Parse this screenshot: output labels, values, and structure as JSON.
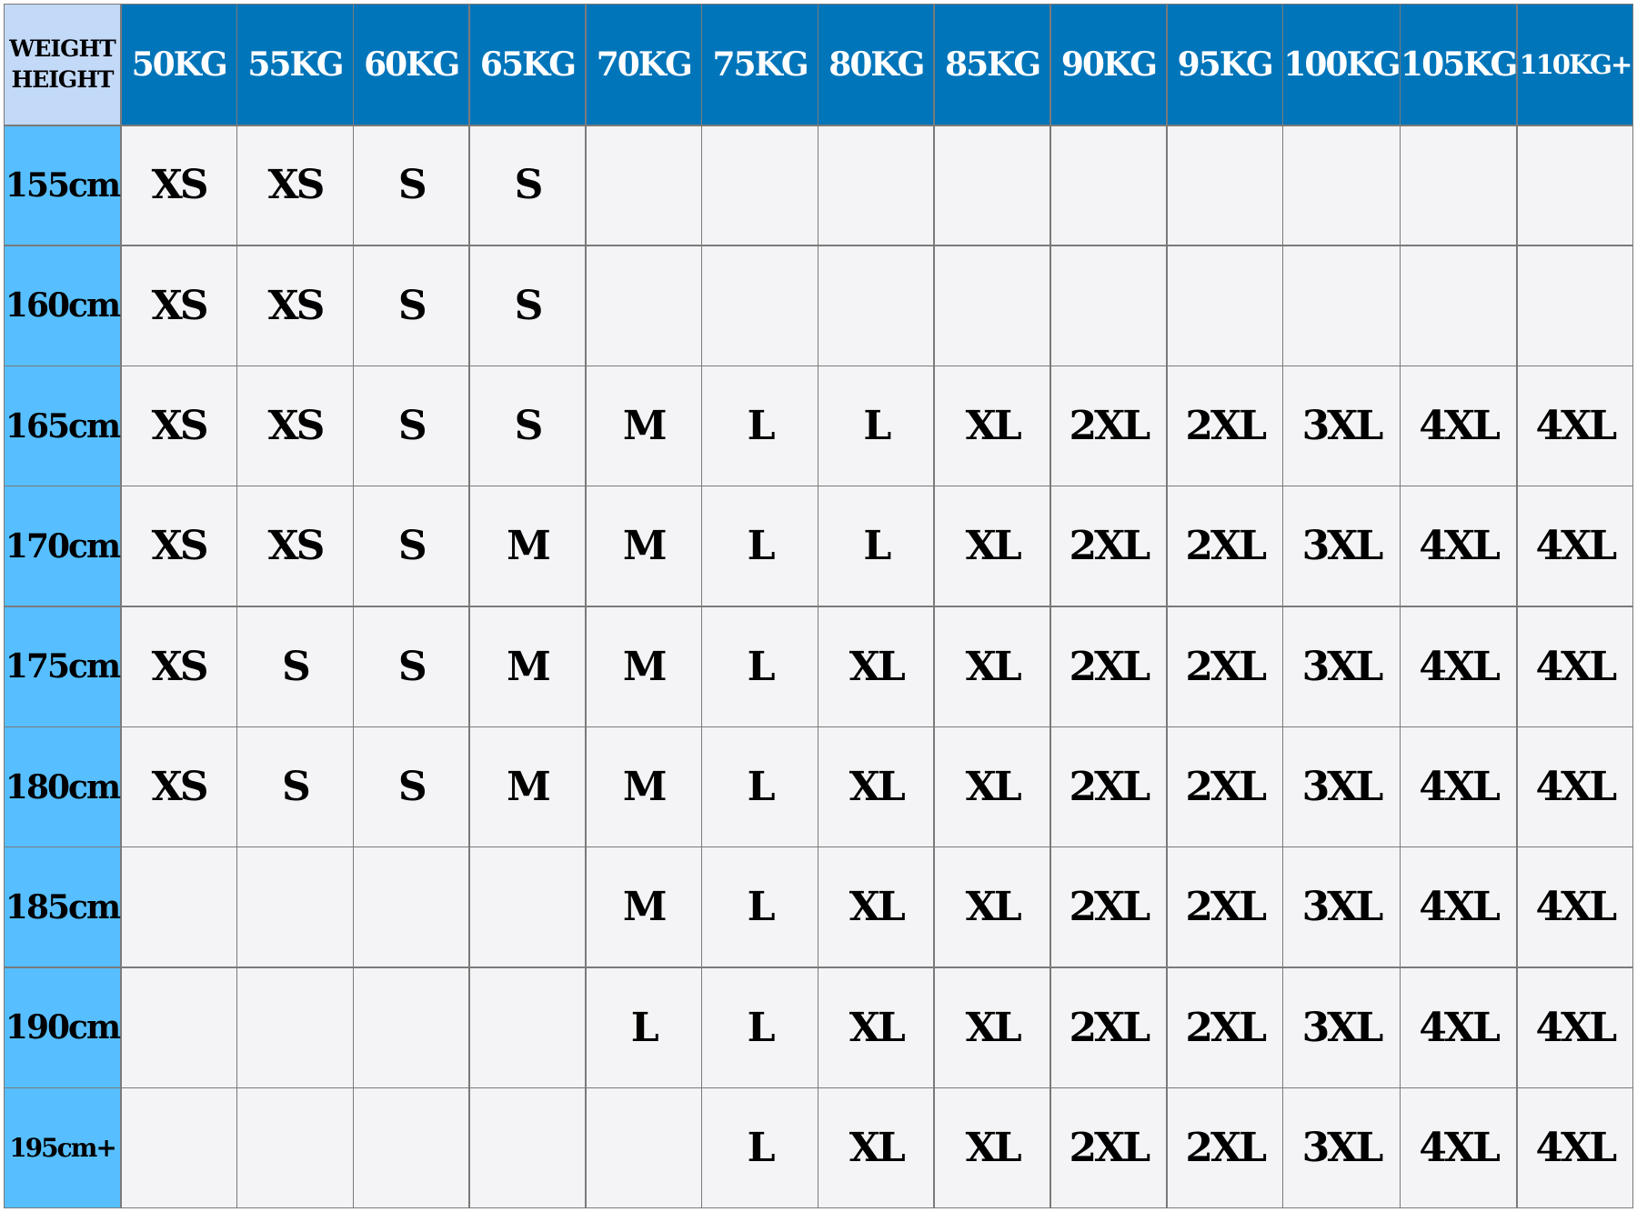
{
  "corner": {
    "line1": "WEIGHT",
    "line2": "HEIGHT"
  },
  "weights": [
    "50KG",
    "55KG",
    "60KG",
    "65KG",
    "70KG",
    "75KG",
    "80KG",
    "85KG",
    "90KG",
    "95KG",
    "100KG",
    "105KG",
    "110KG+"
  ],
  "rows": [
    {
      "height": "155cm",
      "sizes": [
        "XS",
        "XS",
        "S",
        "S",
        "",
        "",
        "",
        "",
        "",
        "",
        "",
        "",
        ""
      ]
    },
    {
      "height": "160cm",
      "sizes": [
        "XS",
        "XS",
        "S",
        "S",
        "",
        "",
        "",
        "",
        "",
        "",
        "",
        "",
        ""
      ]
    },
    {
      "height": "165cm",
      "sizes": [
        "XS",
        "XS",
        "S",
        "S",
        "M",
        "L",
        "L",
        "XL",
        "2XL",
        "2XL",
        "3XL",
        "4XL",
        "4XL"
      ]
    },
    {
      "height": "170cm",
      "sizes": [
        "XS",
        "XS",
        "S",
        "M",
        "M",
        "L",
        "L",
        "XL",
        "2XL",
        "2XL",
        "3XL",
        "4XL",
        "4XL"
      ]
    },
    {
      "height": "175cm",
      "sizes": [
        "XS",
        "S",
        "S",
        "M",
        "M",
        "L",
        "XL",
        "XL",
        "2XL",
        "2XL",
        "3XL",
        "4XL",
        "4XL"
      ]
    },
    {
      "height": "180cm",
      "sizes": [
        "XS",
        "S",
        "S",
        "M",
        "M",
        "L",
        "XL",
        "XL",
        "2XL",
        "2XL",
        "3XL",
        "4XL",
        "4XL"
      ]
    },
    {
      "height": "185cm",
      "sizes": [
        "",
        "",
        "",
        "",
        "M",
        "L",
        "XL",
        "XL",
        "2XL",
        "2XL",
        "3XL",
        "4XL",
        "4XL"
      ]
    },
    {
      "height": "190cm",
      "sizes": [
        "",
        "",
        "",
        "",
        "L",
        "L",
        "XL",
        "XL",
        "2XL",
        "2XL",
        "3XL",
        "4XL",
        "4XL"
      ]
    },
    {
      "height": "195cm+",
      "sizes": [
        "",
        "",
        "",
        "",
        "",
        "L",
        "XL",
        "XL",
        "2XL",
        "2XL",
        "3XL",
        "4XL",
        "4XL"
      ]
    }
  ],
  "colors": {
    "header_bg": "#0075ba",
    "row_header_bg": "#57bfff",
    "corner_bg": "#c2d9f7",
    "cell_bg": "#f4f4f6"
  }
}
